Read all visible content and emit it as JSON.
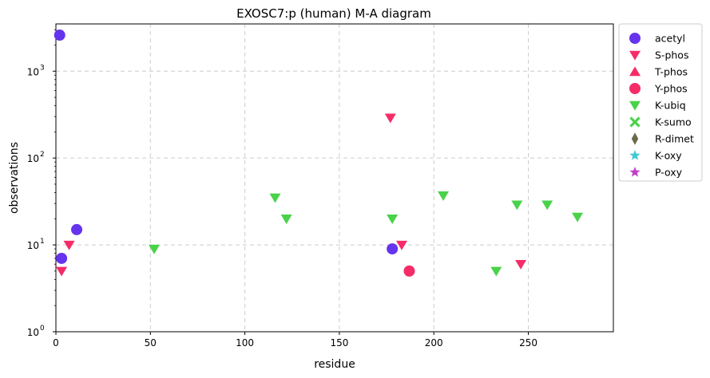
{
  "chart_data": {
    "type": "scatter",
    "title": "EXOSC7:p (human) M-A diagram",
    "xlabel": "residue",
    "ylabel": "observations",
    "xlim": [
      0,
      295
    ],
    "ylim": [
      1,
      3500
    ],
    "yscale": "log",
    "grid": true,
    "legend_placement": "outside-right",
    "x_ticks": [
      0,
      50,
      100,
      150,
      200,
      250
    ],
    "y_ticks": [
      {
        "value": 1,
        "label": "10",
        "exp": "0"
      },
      {
        "value": 10,
        "label": "10",
        "exp": "1"
      },
      {
        "value": 100,
        "label": "10",
        "exp": "2"
      },
      {
        "value": 1000,
        "label": "10",
        "exp": "3"
      }
    ],
    "series": [
      {
        "name": "acetyl",
        "marker": "circle",
        "color": "#6633ee",
        "points": [
          [
            2,
            2600
          ],
          [
            3,
            7
          ],
          [
            11,
            15
          ],
          [
            178,
            9
          ]
        ]
      },
      {
        "name": "S-phos",
        "marker": "triangle-down",
        "color": "#f52c68",
        "points": [
          [
            3,
            5
          ],
          [
            7,
            10
          ],
          [
            177,
            290
          ],
          [
            183,
            10
          ],
          [
            246,
            6
          ]
        ]
      },
      {
        "name": "T-phos",
        "marker": "triangle-up",
        "color": "#f52c68",
        "points": []
      },
      {
        "name": "Y-phos",
        "marker": "circle",
        "color": "#f52c68",
        "points": [
          [
            187,
            5
          ]
        ]
      },
      {
        "name": "K-ubiq",
        "marker": "triangle-down",
        "color": "#4ad24a",
        "points": [
          [
            52,
            9
          ],
          [
            116,
            35
          ],
          [
            122,
            20
          ],
          [
            178,
            20
          ],
          [
            205,
            37
          ],
          [
            233,
            5
          ],
          [
            244,
            29
          ],
          [
            260,
            29
          ],
          [
            276,
            21
          ]
        ]
      },
      {
        "name": "K-sumo",
        "marker": "x-cross",
        "color": "#4ad24a",
        "points": []
      },
      {
        "name": "R-dimet",
        "marker": "diamond",
        "color": "#6b6b4a",
        "points": []
      },
      {
        "name": "K-oxy",
        "marker": "star",
        "color": "#40c8d4",
        "points": []
      },
      {
        "name": "P-oxy",
        "marker": "star",
        "color": "#c040c8",
        "points": []
      }
    ]
  }
}
